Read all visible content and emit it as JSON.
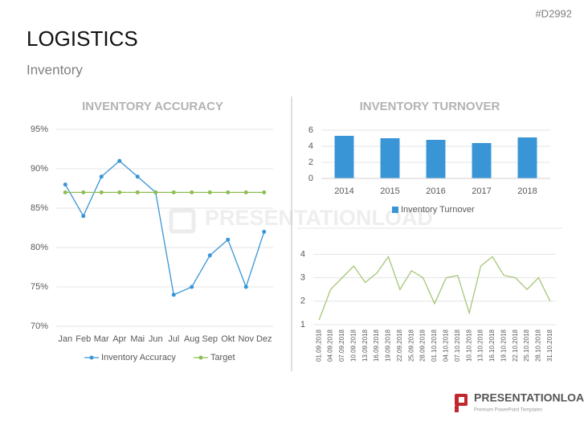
{
  "header": {
    "code": "#D2992",
    "title": "LOGISTICS",
    "subtitle": "Inventory",
    "watermark": "PRESENTATIONLOAD",
    "logo": {
      "name": "PRESENTATIONLOAD",
      "tagline": "Premium PowerPoint Templates"
    }
  },
  "chart_data": [
    {
      "type": "line",
      "title": "INVENTORY ACCURACY",
      "categories": [
        "Jan",
        "Feb",
        "Mar",
        "Apr",
        "Mai",
        "Jun",
        "Jul",
        "Aug",
        "Sep",
        "Okt",
        "Nov",
        "Dez"
      ],
      "series": [
        {
          "name": "Inventory Accuracy",
          "color": "#3a95d6",
          "values": [
            88,
            84,
            89,
            91,
            89,
            87,
            74,
            75,
            79,
            81,
            75,
            82
          ]
        },
        {
          "name": "Target",
          "color": "#8dbd55",
          "values": [
            87,
            87,
            87,
            87,
            87,
            87,
            87,
            87,
            87,
            87,
            87,
            87
          ]
        }
      ],
      "ylim": [
        70,
        95
      ],
      "yticks": [
        {
          "value": 70,
          "label": "70%"
        },
        {
          "value": 75,
          "label": "75%"
        },
        {
          "value": 80,
          "label": "80%"
        },
        {
          "value": 85,
          "label": "85%"
        },
        {
          "value": 90,
          "label": "90%"
        },
        {
          "value": 95,
          "label": "95%"
        }
      ],
      "grid": true,
      "legend": "bottom"
    },
    {
      "type": "bar",
      "title": "INVENTORY TURNOVER",
      "categories": [
        "2014",
        "2015",
        "2016",
        "2017",
        "2018"
      ],
      "series": [
        {
          "name": "Inventory Turnover",
          "color": "#3a95d7",
          "values": [
            5.3,
            5.0,
            4.8,
            4.4,
            5.1
          ]
        }
      ],
      "ylim": [
        0,
        6
      ],
      "yticks": [
        0,
        2,
        4,
        6
      ],
      "grid": true,
      "legend": "bottom"
    },
    {
      "type": "line",
      "categories": [
        "01.09.2018",
        "04.09.2018",
        "07.09.2018",
        "10.09.2018",
        "13.09.2018",
        "16.09.2018",
        "19.09.2018",
        "22.09.2018",
        "25.09.2018",
        "28.09.2018",
        "01.10.2018",
        "04.10.2018",
        "07.10.2018",
        "10.10.2018",
        "13.10.2018",
        "16.10.2018",
        "19.10.2018",
        "22.10.2018",
        "25.10.2018",
        "28.10.2018",
        "31.10.2018"
      ],
      "values": [
        1.2,
        2.5,
        3.0,
        3.5,
        2.8,
        3.2,
        3.9,
        2.5,
        3.3,
        3.0,
        1.9,
        3.0,
        3.1,
        1.5,
        3.5,
        3.9,
        3.1,
        3.0,
        2.5,
        3.0,
        2.0
      ],
      "color": "#a6c678",
      "ylim": [
        1,
        4.7
      ],
      "yticks": [
        1,
        2,
        3,
        4
      ],
      "grid": true
    }
  ]
}
